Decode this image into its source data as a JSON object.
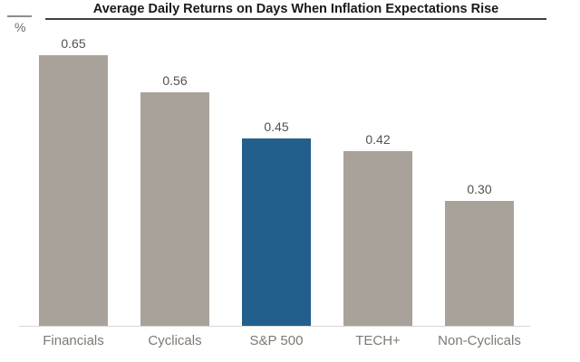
{
  "header": {
    "title": "Average Daily Returns on Days When Inflation Expectations Rise",
    "unit_label": "%"
  },
  "chart_data": {
    "type": "bar",
    "title": "Average Daily Returns on Days When Inflation Expectations Rise",
    "ylabel": "%",
    "xlabel": "",
    "categories": [
      "Financials",
      "Cyclicals",
      "S&P 500",
      "TECH+",
      "Non-Cyclicals"
    ],
    "values": [
      0.65,
      0.56,
      0.45,
      0.42,
      0.3
    ],
    "value_labels": [
      "0.65",
      "0.56",
      "0.45",
      "0.42",
      "0.30"
    ],
    "highlight_index": 2,
    "highlighted_category": "S&P 500",
    "ylim": [
      0,
      0.7
    ],
    "grid": false,
    "legend": false,
    "bar_colors": {
      "default": "#A9A29B",
      "highlight": "#235F8C"
    }
  },
  "colors": {
    "title_text": "#1A1A1A",
    "title_underline": "#3F3F3F",
    "unit_label": "#6E6A65",
    "value_label": "#55514C",
    "category_label": "#7E7973",
    "baseline": "#D9D6D2",
    "background": "#FFFFFF"
  }
}
